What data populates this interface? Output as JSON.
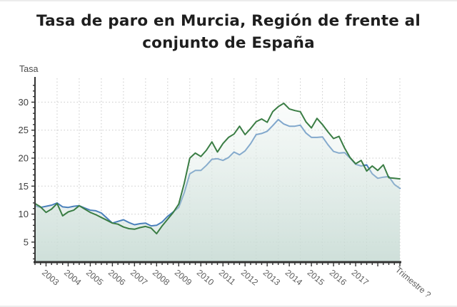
{
  "title": {
    "line1": "Tasa de paro en Murcia, Región de frente al",
    "line2": "conjunto de España"
  },
  "chart_data": {
    "type": "area",
    "title": "Tasa de paro en Murcia, Región de frente al conjunto de España",
    "ylabel": "Tasa",
    "xlabel_end": "Trimestre ?",
    "y_ticks": [
      5,
      10,
      15,
      20,
      25,
      30
    ],
    "ylim": [
      1.55,
      34
    ],
    "x_tick_years": [
      "2003",
      "2004",
      "2005",
      "2006",
      "2007",
      "2008",
      "2009",
      "2010",
      "2011",
      "2012",
      "2013",
      "2014",
      "2015",
      "2016",
      "2017"
    ],
    "x_start_period": "2002-T1",
    "x_end_period": "2018-T3",
    "x_step": "trimestre",
    "grid": {
      "on": true,
      "color": "#c9c9c9",
      "style": "dotted"
    },
    "legend": "none",
    "fill_gradient": {
      "top": "#f3f8f6",
      "bottom": "#c6dad3"
    },
    "axis_color": "#333333",
    "series": [
      {
        "name": "Conjunto de España",
        "color": "#4a80bb",
        "values": [
          11.5,
          11.2,
          11.4,
          11.6,
          12.0,
          11.3,
          11.2,
          11.4,
          11.5,
          11.1,
          10.7,
          10.6,
          10.2,
          9.3,
          8.4,
          8.7,
          9.0,
          8.5,
          8.1,
          8.3,
          8.4,
          7.9,
          8.0,
          8.6,
          9.6,
          10.4,
          11.2,
          13.8,
          17.2,
          17.8,
          17.8,
          18.7,
          19.8,
          19.9,
          19.6,
          20.1,
          21.1,
          20.6,
          21.3,
          22.6,
          24.2,
          24.4,
          24.8,
          25.8,
          26.9,
          26.1,
          25.7,
          25.7,
          25.9,
          24.5,
          23.7,
          23.7,
          23.8,
          22.4,
          21.2,
          20.9,
          21.0,
          20.0,
          18.9,
          18.6,
          18.8,
          17.2,
          16.4,
          16.6,
          16.7,
          15.3,
          14.6
        ]
      },
      {
        "name": "Murcia, Región de",
        "color": "#3a7d44",
        "values": [
          11.9,
          11.3,
          10.3,
          10.9,
          11.9,
          9.7,
          10.4,
          10.7,
          11.5,
          10.9,
          10.3,
          9.9,
          9.4,
          8.9,
          8.4,
          8.2,
          7.7,
          7.4,
          7.3,
          7.6,
          7.8,
          7.5,
          6.5,
          7.9,
          9.1,
          10.3,
          11.8,
          15.5,
          20.0,
          20.9,
          20.3,
          21.4,
          22.9,
          21.1,
          22.6,
          23.7,
          24.3,
          25.7,
          24.2,
          25.3,
          26.5,
          27.0,
          26.4,
          28.3,
          29.2,
          29.8,
          28.8,
          28.5,
          28.3,
          26.5,
          25.4,
          27.1,
          26.0,
          24.7,
          23.5,
          23.9,
          21.8,
          20.1,
          19.0,
          19.6,
          17.7,
          18.6,
          17.8,
          18.8,
          16.5,
          16.4,
          16.3
        ]
      }
    ]
  }
}
